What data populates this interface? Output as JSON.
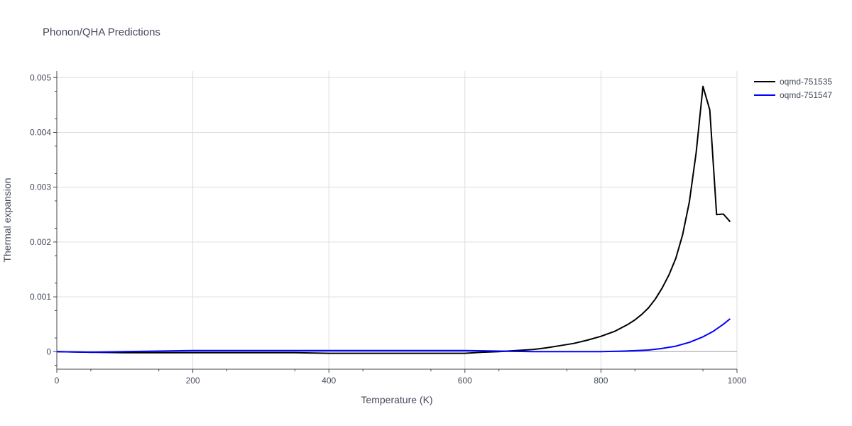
{
  "chart_data": {
    "type": "line",
    "title": "Phonon/QHA Predictions",
    "xlabel": "Temperature (K)",
    "ylabel": "Thermal expansion",
    "xlim": [
      0,
      1000
    ],
    "ylim": [
      -0.00032,
      0.00512
    ],
    "x_ticks": [
      0,
      200,
      400,
      600,
      800,
      1000
    ],
    "x_tick_labels": [
      "0",
      "200",
      "400",
      "600",
      "800",
      "1000"
    ],
    "y_ticks": [
      0,
      0.001,
      0.002,
      0.003,
      0.004,
      0.005
    ],
    "y_tick_labels": [
      "0",
      "0.001",
      "0.002",
      "0.003",
      "0.004",
      "0.005"
    ],
    "grid": true,
    "legend_position": "right",
    "series": [
      {
        "name": "oqmd-751535",
        "color": "#000000",
        "x": [
          0,
          50,
          100,
          150,
          200,
          250,
          300,
          350,
          400,
          450,
          500,
          550,
          600,
          625,
          650,
          675,
          700,
          720,
          740,
          760,
          780,
          800,
          820,
          840,
          850,
          860,
          870,
          880,
          890,
          900,
          910,
          920,
          930,
          940,
          950,
          960,
          970,
          980,
          990
        ],
        "y": [
          0,
          -1e-05,
          -2e-05,
          -2e-05,
          -2e-05,
          -2e-05,
          -2e-05,
          -2e-05,
          -3e-05,
          -3e-05,
          -3e-05,
          -3e-05,
          -3e-05,
          -1e-05,
          0.0,
          2e-05,
          4e-05,
          7e-05,
          0.00011,
          0.00015,
          0.00021,
          0.00028,
          0.00037,
          0.0005,
          0.00058,
          0.00068,
          0.0008,
          0.00096,
          0.00116,
          0.0014,
          0.0017,
          0.00213,
          0.00273,
          0.00363,
          0.00484,
          0.00441,
          0.0025,
          0.00251,
          0.00237
        ]
      },
      {
        "name": "oqmd-751547",
        "color": "#0000ff",
        "x": [
          0,
          50,
          100,
          150,
          200,
          250,
          300,
          350,
          400,
          450,
          500,
          550,
          600,
          650,
          700,
          750,
          800,
          835,
          870,
          890,
          910,
          930,
          950,
          965,
          980,
          990
        ],
        "y": [
          0,
          -1e-05,
          0.0,
          1e-05,
          2e-05,
          2e-05,
          2e-05,
          2e-05,
          2e-05,
          2e-05,
          2e-05,
          2e-05,
          2e-05,
          1e-05,
          0.0,
          0.0,
          0.0,
          1e-05,
          3e-05,
          6e-05,
          0.0001,
          0.00017,
          0.00027,
          0.00037,
          0.0005,
          0.0006
        ]
      }
    ]
  }
}
